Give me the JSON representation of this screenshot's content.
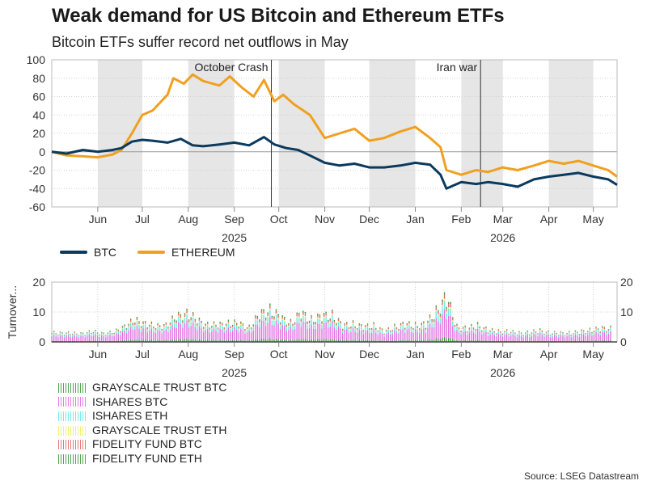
{
  "title": "Weak demand for US Bitcoin and Ethereum ETFs",
  "subtitle": "Bitcoin ETFs suffer record net outflows in May",
  "source": "Source: LSEG Datastream",
  "colors": {
    "btc": "#0b3a5e",
    "eth": "#f0a020",
    "shade": "#e6e6e6",
    "grayscale_btc": "#3f9a3f",
    "ishares_btc": "#e070e0",
    "ishares_eth": "#70e6e6",
    "grayscale_eth": "#f2f266",
    "fidelity_btc": "#e06a6a",
    "fidelity_eth": "#3f9a3f"
  },
  "chart_data": [
    {
      "type": "line",
      "title": "Weak demand for US Bitcoin and Ethereum ETFs",
      "subtitle": "Bitcoin ETFs suffer record net outflows in May",
      "ylim": [
        -60,
        100
      ],
      "yticks": [
        100,
        80,
        60,
        40,
        20,
        0,
        -20,
        -40,
        -60
      ],
      "xlim": [
        "2025-05-15",
        "2026-05-31"
      ],
      "month_labels": [
        {
          "label": "Jun",
          "date": "2025-06-15"
        },
        {
          "label": "Jul",
          "date": "2025-07-15"
        },
        {
          "label": "Aug",
          "date": "2025-08-15"
        },
        {
          "label": "Sep",
          "date": "2025-09-15"
        },
        {
          "label": "Oct",
          "date": "2025-10-15"
        },
        {
          "label": "Nov",
          "date": "2025-11-15"
        },
        {
          "label": "Dec",
          "date": "2025-12-15"
        },
        {
          "label": "Jan",
          "date": "2026-01-15"
        },
        {
          "label": "Feb",
          "date": "2026-02-15"
        },
        {
          "label": "Mar",
          "date": "2026-03-15"
        },
        {
          "label": "Apr",
          "date": "2026-04-15"
        },
        {
          "label": "May",
          "date": "2026-05-15"
        }
      ],
      "year_labels": [
        {
          "label": "2025",
          "date": "2025-09-15"
        },
        {
          "label": "2026",
          "date": "2026-03-15"
        }
      ],
      "shaded_months": [
        [
          "2025-06-15",
          "2025-07-15"
        ],
        [
          "2025-08-15",
          "2025-09-15"
        ],
        [
          "2025-10-15",
          "2025-11-15"
        ],
        [
          "2025-12-15",
          "2026-01-15"
        ],
        [
          "2026-02-15",
          "2026-03-15"
        ],
        [
          "2026-04-15",
          "2026-05-15"
        ]
      ],
      "annotations": [
        {
          "label": "October Crash",
          "date": "2025-10-10"
        },
        {
          "label": "Iran war",
          "date": "2026-02-28"
        }
      ],
      "legend": "bottom-left",
      "grid": true,
      "series": [
        {
          "name": "BTC",
          "points": [
            [
              "2025-05-15",
              0
            ],
            [
              "2025-05-25",
              -2
            ],
            [
              "2025-06-05",
              2
            ],
            [
              "2025-06-15",
              0
            ],
            [
              "2025-06-25",
              2
            ],
            [
              "2025-07-01",
              4
            ],
            [
              "2025-07-08",
              11
            ],
            [
              "2025-07-15",
              13
            ],
            [
              "2025-07-22",
              12
            ],
            [
              "2025-08-01",
              10
            ],
            [
              "2025-08-10",
              14
            ],
            [
              "2025-08-18",
              7
            ],
            [
              "2025-08-25",
              6
            ],
            [
              "2025-09-05",
              8
            ],
            [
              "2025-09-15",
              10
            ],
            [
              "2025-09-25",
              7
            ],
            [
              "2025-10-05",
              16
            ],
            [
              "2025-10-12",
              8
            ],
            [
              "2025-10-20",
              4
            ],
            [
              "2025-10-28",
              2
            ],
            [
              "2025-11-05",
              -4
            ],
            [
              "2025-11-15",
              -12
            ],
            [
              "2025-11-25",
              -15
            ],
            [
              "2025-12-05",
              -13
            ],
            [
              "2025-12-15",
              -17
            ],
            [
              "2025-12-25",
              -17
            ],
            [
              "2026-01-05",
              -15
            ],
            [
              "2026-01-15",
              -12
            ],
            [
              "2026-01-25",
              -14
            ],
            [
              "2026-02-01",
              -25
            ],
            [
              "2026-02-05",
              -40
            ],
            [
              "2026-02-15",
              -33
            ],
            [
              "2026-02-25",
              -35
            ],
            [
              "2026-03-05",
              -33
            ],
            [
              "2026-03-15",
              -35
            ],
            [
              "2026-03-25",
              -38
            ],
            [
              "2026-04-05",
              -30
            ],
            [
              "2026-04-15",
              -27
            ],
            [
              "2026-04-25",
              -25
            ],
            [
              "2026-05-05",
              -23
            ],
            [
              "2026-05-15",
              -27
            ],
            [
              "2026-05-25",
              -30
            ],
            [
              "2026-05-31",
              -36
            ]
          ]
        },
        {
          "name": "ETHEREUM",
          "points": [
            [
              "2025-05-15",
              0
            ],
            [
              "2025-05-25",
              -4
            ],
            [
              "2025-06-05",
              -5
            ],
            [
              "2025-06-15",
              -6
            ],
            [
              "2025-06-25",
              -3
            ],
            [
              "2025-07-01",
              2
            ],
            [
              "2025-07-08",
              20
            ],
            [
              "2025-07-15",
              40
            ],
            [
              "2025-07-22",
              45
            ],
            [
              "2025-08-01",
              62
            ],
            [
              "2025-08-05",
              80
            ],
            [
              "2025-08-12",
              74
            ],
            [
              "2025-08-18",
              84
            ],
            [
              "2025-08-25",
              77
            ],
            [
              "2025-09-05",
              72
            ],
            [
              "2025-09-12",
              82
            ],
            [
              "2025-09-20",
              70
            ],
            [
              "2025-09-28",
              60
            ],
            [
              "2025-10-05",
              78
            ],
            [
              "2025-10-12",
              55
            ],
            [
              "2025-10-18",
              62
            ],
            [
              "2025-10-25",
              52
            ],
            [
              "2025-11-05",
              40
            ],
            [
              "2025-11-15",
              15
            ],
            [
              "2025-11-25",
              20
            ],
            [
              "2025-12-05",
              25
            ],
            [
              "2025-12-15",
              12
            ],
            [
              "2025-12-25",
              15
            ],
            [
              "2026-01-05",
              22
            ],
            [
              "2026-01-15",
              27
            ],
            [
              "2026-01-25",
              15
            ],
            [
              "2026-02-01",
              5
            ],
            [
              "2026-02-05",
              -20
            ],
            [
              "2026-02-15",
              -25
            ],
            [
              "2026-02-25",
              -20
            ],
            [
              "2026-03-05",
              -22
            ],
            [
              "2026-03-15",
              -17
            ],
            [
              "2026-03-25",
              -20
            ],
            [
              "2026-04-05",
              -15
            ],
            [
              "2026-04-15",
              -10
            ],
            [
              "2026-04-25",
              -13
            ],
            [
              "2026-05-05",
              -10
            ],
            [
              "2026-05-15",
              -15
            ],
            [
              "2026-05-25",
              -20
            ],
            [
              "2026-05-31",
              -27
            ]
          ]
        }
      ]
    },
    {
      "type": "bar",
      "stacked": true,
      "ylabel": "Turnover...",
      "ylim": [
        0,
        20
      ],
      "yticks": [
        20,
        10,
        0
      ],
      "xlim": [
        "2025-05-15",
        "2026-05-31"
      ],
      "legend": "bottom-left",
      "series_names": [
        "GRAYSCALE TRUST BTC",
        "ISHARES BTC",
        "ISHARES ETH",
        "GRAYSCALE TRUST ETH",
        "FIDELITY FUND BTC",
        "FIDELITY FUND ETH"
      ],
      "weekly_totals": [
        {
          "week_start": "2025-05-15",
          "total": 3.0
        },
        {
          "week_start": "2025-05-22",
          "total": 3.2
        },
        {
          "week_start": "2025-05-29",
          "total": 2.8
        },
        {
          "week_start": "2025-06-05",
          "total": 3.0
        },
        {
          "week_start": "2025-06-12",
          "total": 3.4
        },
        {
          "week_start": "2025-06-19",
          "total": 3.0
        },
        {
          "week_start": "2025-06-26",
          "total": 3.2
        },
        {
          "week_start": "2025-07-03",
          "total": 5.5
        },
        {
          "week_start": "2025-07-10",
          "total": 7.0
        },
        {
          "week_start": "2025-07-17",
          "total": 6.5
        },
        {
          "week_start": "2025-07-24",
          "total": 5.0
        },
        {
          "week_start": "2025-07-31",
          "total": 6.0
        },
        {
          "week_start": "2025-08-07",
          "total": 8.0
        },
        {
          "week_start": "2025-08-14",
          "total": 10.0
        },
        {
          "week_start": "2025-08-21",
          "total": 7.0
        },
        {
          "week_start": "2025-08-28",
          "total": 6.0
        },
        {
          "week_start": "2025-09-04",
          "total": 5.5
        },
        {
          "week_start": "2025-09-11",
          "total": 6.5
        },
        {
          "week_start": "2025-09-18",
          "total": 6.0
        },
        {
          "week_start": "2025-09-25",
          "total": 5.0
        },
        {
          "week_start": "2025-10-02",
          "total": 9.0
        },
        {
          "week_start": "2025-10-09",
          "total": 11.0
        },
        {
          "week_start": "2025-10-16",
          "total": 8.0
        },
        {
          "week_start": "2025-10-23",
          "total": 6.5
        },
        {
          "week_start": "2025-10-30",
          "total": 9.5
        },
        {
          "week_start": "2025-11-06",
          "total": 7.5
        },
        {
          "week_start": "2025-11-13",
          "total": 8.5
        },
        {
          "week_start": "2025-11-20",
          "total": 9.0
        },
        {
          "week_start": "2025-11-27",
          "total": 5.5
        },
        {
          "week_start": "2025-12-04",
          "total": 6.0
        },
        {
          "week_start": "2025-12-11",
          "total": 5.0
        },
        {
          "week_start": "2025-12-18",
          "total": 5.5
        },
        {
          "week_start": "2025-12-25",
          "total": 3.5
        },
        {
          "week_start": "2026-01-01",
          "total": 5.0
        },
        {
          "week_start": "2026-01-08",
          "total": 6.0
        },
        {
          "week_start": "2026-01-15",
          "total": 5.5
        },
        {
          "week_start": "2026-01-22",
          "total": 6.0
        },
        {
          "week_start": "2026-01-29",
          "total": 10.0
        },
        {
          "week_start": "2026-02-05",
          "total": 15.0
        },
        {
          "week_start": "2026-02-12",
          "total": 5.0
        },
        {
          "week_start": "2026-02-19",
          "total": 4.5
        },
        {
          "week_start": "2026-02-26",
          "total": 5.5
        },
        {
          "week_start": "2026-03-05",
          "total": 4.0
        },
        {
          "week_start": "2026-03-12",
          "total": 3.5
        },
        {
          "week_start": "2026-03-19",
          "total": 3.5
        },
        {
          "week_start": "2026-03-26",
          "total": 3.0
        },
        {
          "week_start": "2026-04-02",
          "total": 3.2
        },
        {
          "week_start": "2026-04-09",
          "total": 3.8
        },
        {
          "week_start": "2026-04-16",
          "total": 3.0
        },
        {
          "week_start": "2026-04-23",
          "total": 3.0
        },
        {
          "week_start": "2026-04-30",
          "total": 3.0
        },
        {
          "week_start": "2026-05-07",
          "total": 3.5
        },
        {
          "week_start": "2026-05-14",
          "total": 4.0
        },
        {
          "week_start": "2026-05-21",
          "total": 4.5
        }
      ],
      "share": {
        "GRAYSCALE TRUST BTC": 0.1,
        "ISHARES BTC": 0.55,
        "ISHARES ETH": 0.18,
        "GRAYSCALE TRUST ETH": 0.04,
        "FIDELITY FUND BTC": 0.08,
        "FIDELITY FUND ETH": 0.05
      }
    }
  ],
  "legend_top": [
    {
      "name": "BTC",
      "color": "#0b3a5e"
    },
    {
      "name": "ETHEREUM",
      "color": "#f0a020"
    }
  ],
  "legend_bottom": [
    {
      "name": "GRAYSCALE TRUST BTC",
      "color": "#3f9a3f"
    },
    {
      "name": "ISHARES BTC",
      "color": "#e070e0"
    },
    {
      "name": "ISHARES ETH",
      "color": "#70e6e6"
    },
    {
      "name": "GRAYSCALE TRUST ETH",
      "color": "#f2f266"
    },
    {
      "name": "FIDELITY FUND BTC",
      "color": "#e06a6a"
    },
    {
      "name": "FIDELITY FUND ETH",
      "color": "#3f9a3f"
    }
  ]
}
